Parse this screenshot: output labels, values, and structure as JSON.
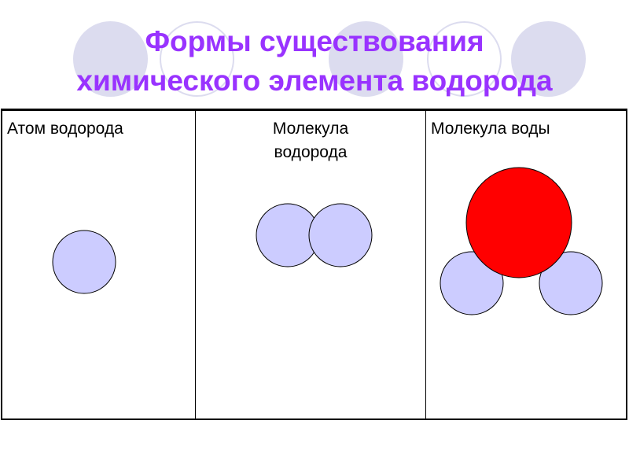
{
  "title": {
    "line1": "Формы существования",
    "line2": "химического элемента водорода"
  },
  "table": {
    "columns": [
      {
        "header": "Атом водорода"
      },
      {
        "header_line1": "Молекула",
        "header_line2": "водорода"
      },
      {
        "header": "Молекула воды"
      }
    ]
  },
  "colors": {
    "title": "#9933ff",
    "hydrogen": "#ccccff",
    "oxygen": "#ff0000",
    "decor": "#dcdcef"
  }
}
